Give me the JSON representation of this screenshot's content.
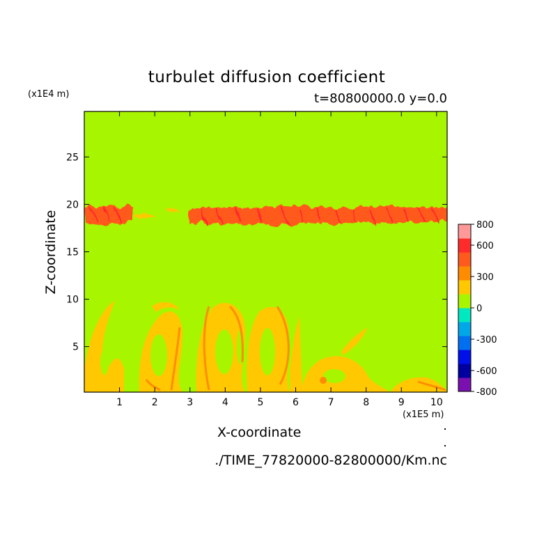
{
  "chart_data": {
    "type": "heatmap",
    "title": "turbulet diffusion coefficient",
    "subtitle": "t=80800000.0 y=0.0",
    "xlabel": "X-coordinate",
    "ylabel": "Z-coordinate",
    "x_unit": "(x1E5 m)",
    "z_unit": "(x1E4 m)",
    "file": "./TIME_77820000-82800000/Km.nc",
    "xlim": [
      0.0,
      10.3
    ],
    "ylim": [
      0.2,
      29.8
    ],
    "x_ticks": [
      1,
      2,
      3,
      4,
      5,
      6,
      7,
      8,
      9,
      10
    ],
    "y_ticks": [
      5,
      10,
      15,
      20,
      25
    ],
    "background_level_color": "#a8f500",
    "colorbar": {
      "levels": [
        "800",
        "600",
        "300",
        "0",
        "-300",
        "-600",
        "-800"
      ],
      "bands": [
        "#7a10b0",
        "#0000a0",
        "#0010e8",
        "#0070f0",
        "#00a8e8",
        "#00e8c0",
        "#a8f500",
        "#ffc800",
        "#ff8c00",
        "#ff5a1e",
        "#ff2a2a",
        "#ff9999"
      ]
    },
    "features": [
      {
        "kind": "turbulent layer near tropopause",
        "z_range": [
          18.0,
          20.0
        ],
        "x_range": [
          0.0,
          10.3
        ],
        "values": "300-600"
      },
      {
        "kind": "boundary layer eddies",
        "z_range": [
          0.2,
          10.0
        ],
        "x_range": [
          0.0,
          10.3
        ],
        "values": "0-400"
      }
    ]
  }
}
